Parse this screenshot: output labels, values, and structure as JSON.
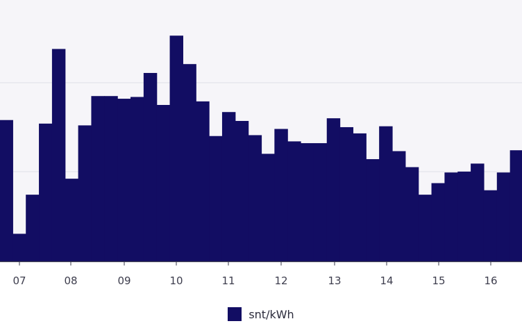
{
  "chart_data": {
    "type": "bar",
    "x_tick_labels": [
      "07",
      "08",
      "09",
      "10",
      "11",
      "12",
      "13",
      "14",
      "15",
      "16"
    ],
    "values": [
      15.9,
      3.1,
      7.5,
      15.5,
      23.9,
      9.3,
      15.3,
      18.6,
      18.6,
      18.3,
      18.5,
      21.2,
      17.6,
      25.4,
      22.2,
      18.0,
      14.1,
      16.8,
      15.8,
      14.2,
      12.1,
      14.9,
      13.5,
      13.3,
      13.3,
      16.1,
      15.1,
      14.4,
      11.5,
      15.2,
      12.4,
      10.6,
      7.5,
      8.8,
      10.0,
      10.1,
      11.0,
      8.0,
      10.0,
      12.5
    ],
    "ylim": [
      0,
      25.5
    ],
    "grid": true,
    "legend": [
      {
        "name": "snt/kWh",
        "color": "#120d63"
      }
    ],
    "legend_position": "bottom-center",
    "colors": {
      "bar": "#120d63",
      "plot_background": "#f6f5f9",
      "grid": "#dedee6",
      "axis": "#3a3a4c"
    }
  }
}
